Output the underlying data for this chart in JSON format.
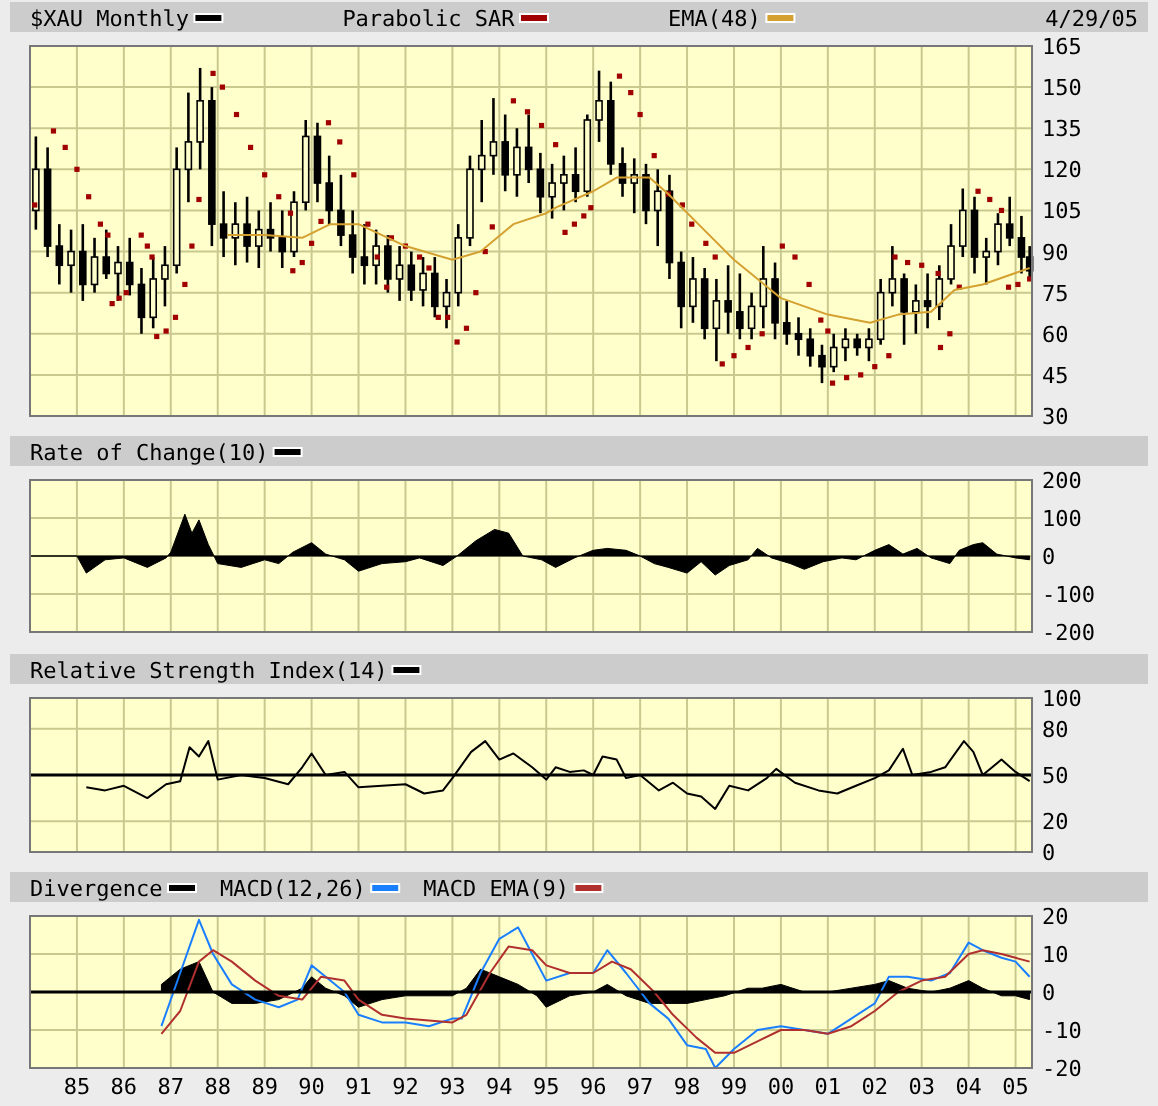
{
  "chart_data": [
    {
      "type": "candlestick",
      "annotations": [
        "4/29/05"
      ],
      "legend": "top left",
      "grid": true,
      "tick_labels": "y",
      "xlim": [
        1984,
        2005.35
      ],
      "xticks": [
        {
          "value": 1985,
          "label": null
        },
        {
          "value": 1986,
          "label": null
        },
        {
          "value": 1987,
          "label": null
        },
        {
          "value": 1988,
          "label": null
        },
        {
          "value": 1989,
          "label": null
        },
        {
          "value": 1990,
          "label": null
        },
        {
          "value": 1991,
          "label": null
        },
        {
          "value": 1992,
          "label": null
        },
        {
          "value": 1993,
          "label": null
        },
        {
          "value": 1994,
          "label": null
        },
        {
          "value": 1995,
          "label": null
        },
        {
          "value": 1996,
          "label": null
        },
        {
          "value": 1997,
          "label": null
        },
        {
          "value": 1998,
          "label": null
        },
        {
          "value": 1999,
          "label": null
        },
        {
          "value": 2000,
          "label": null
        },
        {
          "value": 2001,
          "label": null
        },
        {
          "value": 2002,
          "label": null
        },
        {
          "value": 2003,
          "label": null
        },
        {
          "value": 2004,
          "label": null
        },
        {
          "value": 2005,
          "label": null
        }
      ],
      "ylim": [
        30,
        165
      ],
      "yticks": [
        30,
        45,
        60,
        75,
        90,
        105,
        120,
        135,
        150,
        165
      ],
      "series": [
        {
          "name": "$XAU Monthly",
          "type": "candlestick",
          "color": "#000000",
          "x": [
            1984.125,
            1984.375,
            1984.625,
            1984.875,
            1985.125,
            1985.375,
            1985.625,
            1985.875,
            1986.125,
            1986.375,
            1986.625,
            1986.875,
            1987.125,
            1987.375,
            1987.625,
            1987.875,
            1988.125,
            1988.375,
            1988.625,
            1988.875,
            1989.125,
            1989.375,
            1989.625,
            1989.875,
            1990.125,
            1990.375,
            1990.625,
            1990.875,
            1991.125,
            1991.375,
            1991.625,
            1991.875,
            1992.125,
            1992.375,
            1992.625,
            1992.875,
            1993.125,
            1993.375,
            1993.625,
            1993.875,
            1994.125,
            1994.375,
            1994.625,
            1994.875,
            1995.125,
            1995.375,
            1995.625,
            1995.875,
            1996.125,
            1996.375,
            1996.625,
            1996.875,
            1997.125,
            1997.375,
            1997.625,
            1997.875,
            1998.125,
            1998.375,
            1998.625,
            1998.875,
            1999.125,
            1999.375,
            1999.625,
            1999.875,
            2000.125,
            2000.375,
            2000.625,
            2000.875,
            2001.125,
            2001.375,
            2001.625,
            2001.875,
            2002.125,
            2002.375,
            2002.625,
            2002.875,
            2003.125,
            2003.375,
            2003.625,
            2003.875,
            2004.125,
            2004.375,
            2004.625,
            2004.875,
            2005.125,
            2005.3
          ],
          "ohlc": [
            [
              105,
              132,
              98,
              120
            ],
            [
              120,
              128,
              88,
              92
            ],
            [
              92,
              100,
              78,
              85
            ],
            [
              85,
              98,
              75,
              90
            ],
            [
              90,
              100,
              72,
              78
            ],
            [
              78,
              95,
              75,
              88
            ],
            [
              88,
              98,
              80,
              82
            ],
            [
              82,
              92,
              72,
              86
            ],
            [
              86,
              95,
              74,
              78
            ],
            [
              78,
              84,
              60,
              66
            ],
            [
              66,
              88,
              62,
              80
            ],
            [
              80,
              92,
              70,
              85
            ],
            [
              85,
              128,
              82,
              120
            ],
            [
              120,
              148,
              108,
              130
            ],
            [
              130,
              157,
              120,
              145
            ],
            [
              145,
              150,
              92,
              100
            ],
            [
              100,
              112,
              88,
              95
            ],
            [
              95,
              108,
              85,
              100
            ],
            [
              100,
              110,
              86,
              92
            ],
            [
              92,
              105,
              84,
              98
            ],
            [
              98,
              108,
              90,
              95
            ],
            [
              95,
              105,
              84,
              90
            ],
            [
              90,
              112,
              88,
              108
            ],
            [
              108,
              138,
              105,
              132
            ],
            [
              132,
              137,
              108,
              115
            ],
            [
              115,
              125,
              100,
              105
            ],
            [
              105,
              118,
              92,
              96
            ],
            [
              96,
              105,
              82,
              88
            ],
            [
              88,
              100,
              78,
              85
            ],
            [
              85,
              98,
              78,
              92
            ],
            [
              92,
              96,
              75,
              80
            ],
            [
              80,
              92,
              72,
              85
            ],
            [
              85,
              90,
              72,
              76
            ],
            [
              76,
              88,
              70,
              82
            ],
            [
              82,
              88,
              66,
              70
            ],
            [
              70,
              80,
              62,
              75
            ],
            [
              75,
              100,
              70,
              95
            ],
            [
              95,
              125,
              92,
              120
            ],
            [
              120,
              138,
              108,
              125
            ],
            [
              125,
              146,
              118,
              130
            ],
            [
              130,
              140,
              112,
              118
            ],
            [
              118,
              135,
              110,
              128
            ],
            [
              128,
              140,
              115,
              120
            ],
            [
              120,
              126,
              104,
              110
            ],
            [
              110,
              122,
              102,
              115
            ],
            [
              115,
              125,
              105,
              118
            ],
            [
              118,
              128,
              108,
              112
            ],
            [
              112,
              140,
              110,
              138
            ],
            [
              138,
              156,
              130,
              145
            ],
            [
              145,
              152,
              118,
              122
            ],
            [
              122,
              128,
              110,
              115
            ],
            [
              115,
              124,
              104,
              118
            ],
            [
              118,
              122,
              100,
              105
            ],
            [
              105,
              120,
              92,
              112
            ],
            [
              112,
              118,
              80,
              86
            ],
            [
              86,
              90,
              62,
              70
            ],
            [
              70,
              88,
              64,
              80
            ],
            [
              80,
              84,
              58,
              62
            ],
            [
              62,
              80,
              50,
              72
            ],
            [
              72,
              85,
              60,
              68
            ],
            [
              68,
              82,
              58,
              62
            ],
            [
              62,
              75,
              58,
              70
            ],
            [
              70,
              92,
              62,
              80
            ],
            [
              80,
              86,
              58,
              64
            ],
            [
              64,
              72,
              56,
              60
            ],
            [
              60,
              66,
              52,
              58
            ],
            [
              58,
              62,
              48,
              52
            ],
            [
              52,
              56,
              42,
              48
            ],
            [
              48,
              60,
              46,
              55
            ],
            [
              55,
              62,
              50,
              58
            ],
            [
              58,
              60,
              52,
              55
            ],
            [
              55,
              62,
              50,
              58
            ],
            [
              58,
              80,
              56,
              75
            ],
            [
              75,
              92,
              70,
              80
            ],
            [
              80,
              82,
              56,
              68
            ],
            [
              68,
              78,
              60,
              72
            ],
            [
              72,
              82,
              62,
              70
            ],
            [
              70,
              85,
              65,
              80
            ],
            [
              80,
              100,
              78,
              92
            ],
            [
              92,
              113,
              88,
              105
            ],
            [
              105,
              110,
              82,
              88
            ],
            [
              88,
              95,
              78,
              90
            ],
            [
              90,
              104,
              85,
              100
            ],
            [
              100,
              110,
              92,
              95
            ],
            [
              95,
              103,
              82,
              88
            ],
            [
              88,
              92,
              80,
              83
            ]
          ]
        },
        {
          "name": "Parabolic SAR",
          "type": "scatter",
          "marker": "square",
          "color": "#a00000",
          "x": [
            1984.1,
            1984.5,
            1984.75,
            1985.0,
            1985.25,
            1985.5,
            1985.66,
            1985.75,
            1985.9,
            1986.05,
            1986.37,
            1986.5,
            1986.6,
            1986.7,
            1986.9,
            1987.1,
            1987.3,
            1987.45,
            1987.6,
            1987.9,
            1988.1,
            1988.4,
            1988.7,
            1989.0,
            1989.3,
            1989.55,
            1989.6,
            1989.8,
            1990.0,
            1990.2,
            1990.36,
            1990.6,
            1990.9,
            1991.2,
            1991.4,
            1991.6,
            1991.7,
            1992.0,
            1992.3,
            1992.5,
            1992.7,
            1992.9,
            1993.1,
            1993.3,
            1993.5,
            1993.7,
            1993.85,
            1994.3,
            1994.6,
            1994.9,
            1995.2,
            1995.4,
            1995.6,
            1995.8,
            1995.95,
            1996.56,
            1996.8,
            1997.0,
            1997.3,
            1997.6,
            1997.9,
            1998.1,
            1998.4,
            1998.6,
            1998.75,
            1999.0,
            1999.3,
            1999.6,
            2000.03,
            2000.3,
            2000.6,
            2000.85,
            2001.0,
            2001.1,
            2001.4,
            2001.7,
            2002.0,
            2002.3,
            2002.43,
            2002.7,
            2003.0,
            2003.35,
            2003.4,
            2003.6,
            2003.8,
            2004.2,
            2004.45,
            2004.7,
            2004.85,
            2005.05,
            2005.3
          ],
          "values": [
            107,
            134,
            128,
            120,
            110,
            100,
            96,
            71,
            73,
            75,
            96,
            92,
            88,
            59,
            61,
            66,
            78,
            92,
            109,
            155,
            150,
            140,
            128,
            118,
            110,
            104,
            83,
            86,
            93,
            101,
            137,
            130,
            118,
            100,
            88,
            77,
            95,
            92,
            88,
            84,
            66,
            66,
            57,
            62,
            75,
            90,
            99,
            145,
            141,
            136,
            129,
            97,
            100,
            103,
            106,
            154,
            148,
            140,
            125,
            111,
            107,
            100,
            93,
            88,
            49,
            52,
            55,
            60,
            92,
            88,
            78,
            65,
            61,
            42,
            44,
            45,
            48,
            52,
            88,
            86,
            85,
            82,
            55,
            60,
            77,
            112,
            109,
            105,
            77,
            78,
            80
          ]
        },
        {
          "name": "EMA(48)",
          "type": "line",
          "color": "#d4a030",
          "x": [
            1988.2,
            1989,
            1989.8,
            1990.4,
            1991,
            1992,
            1993,
            1993.6,
            1994.3,
            1995,
            1995.2,
            1996,
            1996.5,
            1997.2,
            1997.6,
            1998.3,
            1999,
            2000,
            2001,
            2001.9,
            2002.5,
            2003.2,
            2003.7,
            2004.3,
            2005.3
          ],
          "values": [
            96,
            96,
            95,
            100,
            100,
            92,
            87,
            90,
            100,
            104,
            106,
            112,
            117,
            117,
            111,
            99,
            87,
            73,
            67,
            64,
            67,
            68,
            76,
            78,
            84
          ]
        }
      ]
    },
    {
      "type": "area",
      "legend": "top left",
      "grid": true,
      "tick_labels": "y",
      "xlim": [
        1984,
        2005.35
      ],
      "xticks": [
        {
          "value": 1985,
          "label": null
        },
        {
          "value": 1986,
          "label": null
        },
        {
          "value": 1987,
          "label": null
        },
        {
          "value": 1988,
          "label": null
        },
        {
          "value": 1989,
          "label": null
        },
        {
          "value": 1990,
          "label": null
        },
        {
          "value": 1991,
          "label": null
        },
        {
          "value": 1992,
          "label": null
        },
        {
          "value": 1993,
          "label": null
        },
        {
          "value": 1994,
          "label": null
        },
        {
          "value": 1995,
          "label": null
        },
        {
          "value": 1996,
          "label": null
        },
        {
          "value": 1997,
          "label": null
        },
        {
          "value": 1998,
          "label": null
        },
        {
          "value": 1999,
          "label": null
        },
        {
          "value": 2000,
          "label": null
        },
        {
          "value": 2001,
          "label": null
        },
        {
          "value": 2002,
          "label": null
        },
        {
          "value": 2003,
          "label": null
        },
        {
          "value": 2004,
          "label": null
        },
        {
          "value": 2005,
          "label": null
        }
      ],
      "ylim": [
        -200,
        200
      ],
      "yticks": [
        -200,
        -100,
        0,
        100,
        200
      ],
      "series": [
        {
          "name": "Rate of Change(10)",
          "color": "#000000",
          "x": [
            1984,
            1985,
            1985.2,
            1985.6,
            1986,
            1986.5,
            1986.9,
            1987,
            1987.3,
            1987.45,
            1987.6,
            1987.8,
            1988,
            1988.5,
            1989,
            1989.3,
            1989.6,
            1990,
            1990.3,
            1990.7,
            1991,
            1991.5,
            1992,
            1992.3,
            1992.8,
            1993.1,
            1993.5,
            1993.9,
            1994.2,
            1994.5,
            1994.9,
            1995.2,
            1995.6,
            1996,
            1996.3,
            1996.7,
            1997,
            1997.3,
            1997.6,
            1998,
            1998.3,
            1998.6,
            1998.9,
            1999.3,
            1999.5,
            1999.8,
            2000.2,
            2000.5,
            2000.9,
            2001.3,
            2001.6,
            2002,
            2002.3,
            2002.6,
            2002.9,
            2003.2,
            2003.6,
            2003.8,
            2004.1,
            2004.3,
            2004.6,
            2005,
            2005.3
          ],
          "values": [
            0,
            0,
            -45,
            -10,
            -5,
            -30,
            -5,
            10,
            110,
            60,
            95,
            30,
            -20,
            -30,
            -10,
            -20,
            10,
            35,
            5,
            -10,
            -40,
            -20,
            -15,
            -5,
            -25,
            0,
            40,
            70,
            60,
            0,
            -10,
            -30,
            -5,
            15,
            20,
            15,
            0,
            -20,
            -30,
            -45,
            -15,
            -50,
            -25,
            -10,
            20,
            -5,
            -20,
            -35,
            -15,
            -5,
            -10,
            15,
            30,
            5,
            20,
            -5,
            -20,
            15,
            30,
            35,
            5,
            -5,
            -10
          ]
        }
      ]
    },
    {
      "type": "line",
      "legend": "top left",
      "grid": true,
      "tick_labels": "y",
      "xlim": [
        1984,
        2005.35
      ],
      "xticks": [
        {
          "value": 1985,
          "label": null
        },
        {
          "value": 1986,
          "label": null
        },
        {
          "value": 1987,
          "label": null
        },
        {
          "value": 1988,
          "label": null
        },
        {
          "value": 1989,
          "label": null
        },
        {
          "value": 1990,
          "label": null
        },
        {
          "value": 1991,
          "label": null
        },
        {
          "value": 1992,
          "label": null
        },
        {
          "value": 1993,
          "label": null
        },
        {
          "value": 1994,
          "label": null
        },
        {
          "value": 1995,
          "label": null
        },
        {
          "value": 1996,
          "label": null
        },
        {
          "value": 1997,
          "label": null
        },
        {
          "value": 1998,
          "label": null
        },
        {
          "value": 1999,
          "label": null
        },
        {
          "value": 2000,
          "label": null
        },
        {
          "value": 2001,
          "label": null
        },
        {
          "value": 2002,
          "label": null
        },
        {
          "value": 2003,
          "label": null
        },
        {
          "value": 2004,
          "label": null
        },
        {
          "value": 2005,
          "label": null
        }
      ],
      "ylim": [
        0,
        100
      ],
      "yticks": [
        0,
        20,
        50,
        80,
        100
      ],
      "ref_lines": [
        {
          "axis": "y",
          "value": 50,
          "color": "#000000"
        }
      ],
      "series": [
        {
          "name": "Relative Strength Index(14)",
          "color": "#000000",
          "x": [
            1985.2,
            1985.6,
            1986,
            1986.5,
            1986.9,
            1987.2,
            1987.4,
            1987.6,
            1987.8,
            1988,
            1988.5,
            1989,
            1989.5,
            1989.8,
            1990,
            1990.3,
            1990.7,
            1991,
            1991.5,
            1992,
            1992.4,
            1992.8,
            1993,
            1993.4,
            1993.7,
            1994,
            1994.3,
            1994.7,
            1995,
            1995.2,
            1995.5,
            1995.8,
            1996,
            1996.2,
            1996.5,
            1996.7,
            1997,
            1997.4,
            1997.7,
            1998,
            1998.3,
            1998.6,
            1998.9,
            1999.3,
            1999.7,
            1999.9,
            2000.3,
            2000.8,
            2001.2,
            2001.6,
            2002,
            2002.3,
            2002.6,
            2002.8,
            2003.2,
            2003.5,
            2003.9,
            2004.1,
            2004.3,
            2004.7,
            2005,
            2005.3
          ],
          "values": [
            42,
            40,
            43,
            35,
            44,
            46,
            68,
            62,
            72,
            47,
            50,
            48,
            44,
            55,
            64,
            50,
            52,
            42,
            43,
            44,
            38,
            40,
            48,
            65,
            72,
            60,
            64,
            55,
            47,
            55,
            52,
            53,
            50,
            62,
            60,
            48,
            50,
            40,
            45,
            38,
            36,
            28,
            43,
            40,
            48,
            54,
            45,
            40,
            38,
            43,
            48,
            53,
            67,
            50,
            52,
            55,
            72,
            65,
            50,
            60,
            52,
            46
          ]
        }
      ]
    },
    {
      "type": "line",
      "legend": "top left",
      "grid": true,
      "xlim": [
        1984,
        2005.35
      ],
      "xticks": [
        {
          "value": 1985,
          "label": "85"
        },
        {
          "value": 1986,
          "label": "86"
        },
        {
          "value": 1987,
          "label": "87"
        },
        {
          "value": 1988,
          "label": "88"
        },
        {
          "value": 1989,
          "label": "89"
        },
        {
          "value": 1990,
          "label": "90"
        },
        {
          "value": 1991,
          "label": "91"
        },
        {
          "value": 1992,
          "label": "92"
        },
        {
          "value": 1993,
          "label": "93"
        },
        {
          "value": 1994,
          "label": "94"
        },
        {
          "value": 1995,
          "label": "95"
        },
        {
          "value": 1996,
          "label": "96"
        },
        {
          "value": 1997,
          "label": "97"
        },
        {
          "value": 1998,
          "label": "98"
        },
        {
          "value": 1999,
          "label": "99"
        },
        {
          "value": 2000,
          "label": "00"
        },
        {
          "value": 2001,
          "label": "01"
        },
        {
          "value": 2002,
          "label": "02"
        },
        {
          "value": 2003,
          "label": "03"
        },
        {
          "value": 2004,
          "label": "04"
        },
        {
          "value": 2005,
          "label": "05"
        }
      ],
      "ylim": [
        -20,
        20
      ],
      "yticks": [
        -20,
        -10,
        0,
        10,
        20
      ],
      "ref_lines": [
        {
          "axis": "y",
          "value": 0,
          "color": "#000000"
        }
      ],
      "series": [
        {
          "name": "Divergence",
          "type": "area",
          "color": "#000000",
          "x": [
            1986.8,
            1987.2,
            1987.6,
            1987.9,
            1988.3,
            1988.8,
            1989.3,
            1989.8,
            1990,
            1990.3,
            1990.7,
            1991,
            1991.5,
            1992,
            1992.5,
            1993,
            1993.3,
            1993.6,
            1994,
            1994.4,
            1994.8,
            1995,
            1995.5,
            1996,
            1996.3,
            1996.7,
            1997.2,
            1997.6,
            1998,
            1998.4,
            1998.8,
            1999.3,
            1999.6,
            2000,
            2000.5,
            2001,
            2001.5,
            2002,
            2002.3,
            2002.7,
            2003.2,
            2003.6,
            2004,
            2004.3,
            2004.7,
            2005,
            2005.3
          ],
          "values": [
            2,
            6,
            8,
            0,
            -3,
            -3,
            -2,
            1,
            4,
            1,
            -1,
            -4,
            -2,
            -1,
            -1,
            -1,
            1,
            6,
            4,
            2,
            -1,
            -4,
            -1,
            0,
            2,
            -1,
            -3,
            -3,
            -3,
            -2,
            -1,
            1,
            1,
            2,
            0,
            0,
            1,
            2,
            3,
            1,
            0,
            1,
            3,
            1,
            -1,
            -1,
            -2
          ]
        },
        {
          "name": "MACD(12,26)",
          "type": "line",
          "color": "#1a7fff",
          "x": [
            1986.8,
            1987.2,
            1987.6,
            1987.9,
            1988.3,
            1988.8,
            1989.3,
            1989.7,
            1990,
            1990.3,
            1990.7,
            1991,
            1991.5,
            1992,
            1992.5,
            1993,
            1993.2,
            1993.6,
            1994,
            1994.4,
            1994.7,
            1995,
            1995.5,
            1996,
            1996.3,
            1996.7,
            1997.2,
            1997.6,
            1998,
            1998.4,
            1998.6,
            1999,
            1999.5,
            2000,
            2000.5,
            2001,
            2001.5,
            2002,
            2002.3,
            2002.7,
            2003.2,
            2003.6,
            2004,
            2004.3,
            2004.7,
            2005,
            2005.3
          ],
          "values": [
            -9,
            5,
            19,
            10,
            2,
            -2,
            -4,
            -2,
            7,
            4,
            0,
            -6,
            -8,
            -8,
            -9,
            -7,
            -7,
            5,
            14,
            17,
            10,
            3,
            5,
            5,
            11,
            5,
            -3,
            -7,
            -14,
            -15,
            -20,
            -15,
            -10,
            -9,
            -10,
            -11,
            -7,
            -3,
            4,
            4,
            3,
            5,
            13,
            11,
            9,
            8,
            4
          ]
        },
        {
          "name": "MACD EMA(9)",
          "type": "line",
          "color": "#b03030",
          "x": [
            1986.8,
            1987.2,
            1987.6,
            1987.9,
            1988.3,
            1988.8,
            1989.3,
            1989.8,
            1990.2,
            1990.7,
            1991,
            1991.5,
            1992,
            1992.5,
            1993,
            1993.3,
            1993.8,
            1994.2,
            1994.7,
            1995,
            1995.5,
            1996,
            1996.4,
            1996.8,
            1997.3,
            1997.7,
            1998.2,
            1998.6,
            1999,
            1999.5,
            2000,
            2000.5,
            2001,
            2001.5,
            2002,
            2002.5,
            2003,
            2003.5,
            2004,
            2004.3,
            2004.7,
            2005,
            2005.3
          ],
          "values": [
            -11,
            -5,
            8,
            11,
            8,
            3,
            -1,
            -2,
            4,
            3,
            -2,
            -6,
            -7,
            -7.5,
            -8,
            -6,
            5,
            12,
            11,
            7,
            5,
            5,
            8,
            6,
            0,
            -6,
            -12,
            -16,
            -16,
            -13,
            -10,
            -10,
            -11,
            -9,
            -5,
            0,
            3,
            4,
            10,
            11,
            10,
            9,
            8
          ]
        }
      ]
    }
  ]
}
